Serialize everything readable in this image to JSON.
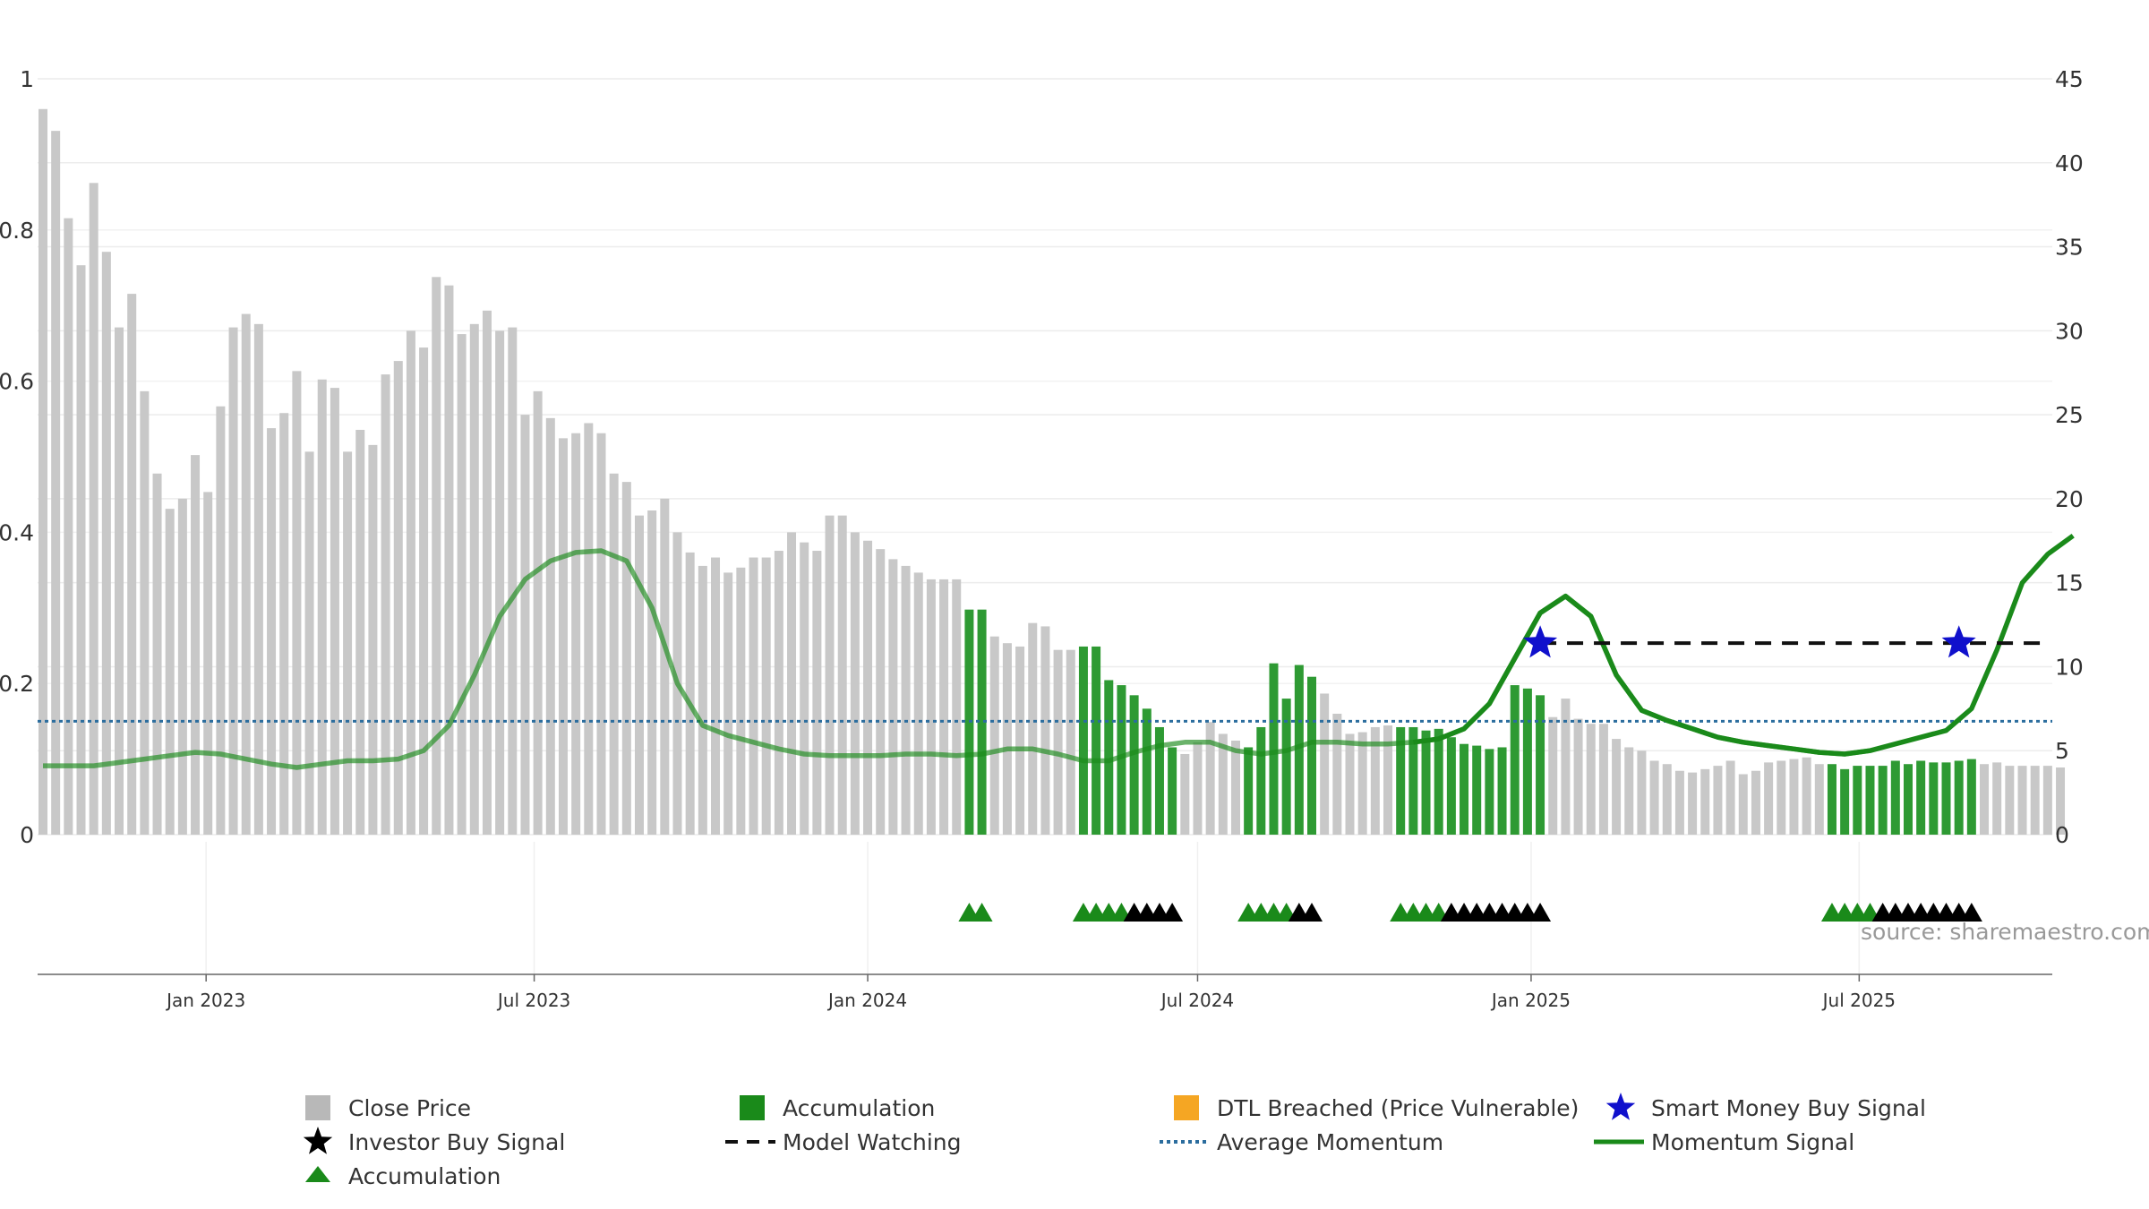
{
  "chart_data": {
    "type": "bar",
    "x_ticks": [
      "Jan 2023",
      "Jul 2023",
      "Jan 2024",
      "Jul 2024",
      "Jan 2025",
      "Jul 2025"
    ],
    "left_axis": {
      "ylim": [
        0,
        1
      ],
      "ticks": [
        "0",
        "0.2",
        "0.4",
        "0.6",
        "0.8",
        "1"
      ]
    },
    "right_axis": {
      "ylim": [
        0,
        45
      ],
      "ticks": [
        "0",
        "5",
        "10",
        "15",
        "20",
        "25",
        "30",
        "35",
        "40",
        "45"
      ]
    },
    "start_date": "2022-10-03",
    "series": [
      {
        "name": "Close Price",
        "type": "bar",
        "color": "#c8c8c8",
        "accumulation_color": "#2e9a33",
        "values": [
          43.2,
          41.9,
          36.7,
          33.9,
          38.8,
          34.7,
          30.2,
          32.2,
          26.4,
          21.5,
          19.4,
          20.0,
          22.6,
          20.4,
          25.5,
          30.2,
          31.0,
          30.4,
          24.2,
          25.1,
          27.6,
          22.8,
          27.1,
          26.6,
          22.8,
          24.1,
          23.2,
          27.4,
          28.2,
          30.0,
          29.0,
          33.2,
          32.7,
          29.8,
          30.4,
          31.2,
          30.0,
          30.2,
          25.0,
          26.4,
          24.8,
          23.6,
          23.9,
          24.5,
          23.9,
          21.5,
          21.0,
          19.0,
          19.3,
          20.0,
          18.0,
          16.8,
          16.0,
          16.5,
          15.6,
          15.9,
          16.5,
          16.5,
          16.9,
          18.0,
          17.4,
          16.9,
          19.0,
          19.0,
          18.0,
          17.5,
          17.0,
          16.4,
          16.0,
          15.6,
          15.2,
          15.2,
          15.2,
          13.4,
          13.4,
          11.8,
          11.4,
          11.2,
          12.6,
          12.4,
          11.0,
          11.0,
          11.2,
          11.2,
          9.2,
          8.9,
          8.3,
          7.5,
          6.4,
          5.2,
          4.8,
          5.5,
          6.7,
          6.0,
          5.6,
          5.2,
          6.4,
          10.2,
          8.1,
          10.1,
          9.4,
          8.4,
          7.2,
          6.0,
          6.1,
          6.4,
          6.5,
          6.4,
          6.4,
          6.2,
          6.3,
          5.8,
          5.4,
          5.3,
          5.1,
          5.2,
          8.9,
          8.7,
          8.3,
          7.0,
          8.1,
          6.9,
          6.6,
          6.6,
          5.7,
          5.2,
          5.0,
          4.4,
          4.2,
          3.8,
          3.7,
          3.9,
          4.1,
          4.4,
          3.6,
          3.8,
          4.3,
          4.4,
          4.5,
          4.6,
          4.2,
          4.2,
          3.9,
          4.1,
          4.1,
          4.1,
          4.4,
          4.2,
          4.4,
          4.3,
          4.3,
          4.4,
          4.5,
          4.2,
          4.3,
          4.1,
          4.1,
          4.1,
          4.1,
          4.0
        ],
        "accumulation_ranges": [
          [
            73,
            74
          ],
          [
            82,
            89
          ],
          [
            95,
            100
          ],
          [
            107,
            118
          ],
          [
            141,
            152
          ]
        ]
      },
      {
        "name": "Momentum Signal",
        "type": "line",
        "color": "#1a8a1a",
        "values": [
          4.1,
          4.1,
          4.1,
          4.3,
          4.5,
          4.7,
          4.9,
          4.8,
          4.5,
          4.2,
          4.0,
          4.2,
          4.4,
          4.4,
          4.5,
          5.0,
          6.5,
          9.5,
          13.0,
          15.2,
          16.3,
          16.8,
          16.9,
          16.3,
          13.5,
          9.0,
          6.5,
          5.9,
          5.5,
          5.1,
          4.8,
          4.7,
          4.7,
          4.7,
          4.8,
          4.8,
          4.7,
          4.8,
          5.1,
          5.1,
          4.8,
          4.4,
          4.4,
          4.9,
          5.3,
          5.5,
          5.5,
          5.0,
          4.8,
          5.0,
          5.5,
          5.5,
          5.4,
          5.4,
          5.5,
          5.7,
          6.3,
          7.8,
          10.5,
          13.2,
          14.2,
          13.0,
          9.5,
          7.4,
          6.8,
          6.3,
          5.8,
          5.5,
          5.3,
          5.1,
          4.9,
          4.8,
          5.0,
          5.4,
          5.8,
          6.2,
          7.5,
          11.0,
          15.0,
          16.7,
          17.8
        ]
      },
      {
        "name": "Average Momentum",
        "type": "line",
        "color": "#2b6d9e",
        "values": [
          6.75
        ]
      },
      {
        "name": "Model Watching",
        "type": "line",
        "color": "#111111",
        "values": [
          11.4
        ]
      },
      {
        "name": "Smart Money Buy Signal",
        "type": "marker",
        "color": "#1010cc",
        "x_index": [
          118,
          151
        ],
        "y": [
          11.4,
          11.4
        ]
      },
      {
        "name": "Accumulation",
        "type": "marker",
        "color": "#1a8a1a",
        "x_index": [
          73,
          74,
          82,
          83,
          84,
          85,
          95,
          96,
          97,
          98,
          107,
          108,
          109,
          110,
          141,
          142,
          143,
          144
        ]
      },
      {
        "name": "Investor Buy Signal",
        "type": "marker",
        "color": "#000000",
        "x_index": [
          86,
          87,
          88,
          89,
          99,
          100,
          111,
          112,
          113,
          114,
          115,
          116,
          117,
          118,
          145,
          146,
          147,
          148,
          149,
          150,
          151,
          152
        ]
      },
      {
        "name": "DTL Breached (Price Vulnerable)",
        "type": "bar",
        "color": "#f5a623",
        "values": []
      }
    ],
    "legend_placement": "bottom",
    "grid": true
  },
  "legend": [
    {
      "label": "Close Price",
      "icon": "square",
      "color": "#b8b8b8"
    },
    {
      "label": "Accumulation",
      "icon": "square",
      "color": "#1a8a1a"
    },
    {
      "label": "DTL Breached (Price Vulnerable)",
      "icon": "square",
      "color": "#f5a623"
    },
    {
      "label": "Smart Money Buy Signal",
      "icon": "star",
      "color": "#1010cc"
    },
    {
      "label": "Investor Buy Signal",
      "icon": "star",
      "color": "#000000"
    },
    {
      "label": "Model Watching",
      "icon": "dashed-line",
      "color": "#111111"
    },
    {
      "label": "Average Momentum",
      "icon": "dotted-line",
      "color": "#2b6d9e"
    },
    {
      "label": "Momentum Signal",
      "icon": "solid-line",
      "color": "#1a8a1a"
    },
    {
      "label": "Accumulation",
      "icon": "triangle",
      "color": "#1a8a1a"
    }
  ],
  "source": "source: sharemaestro.com"
}
